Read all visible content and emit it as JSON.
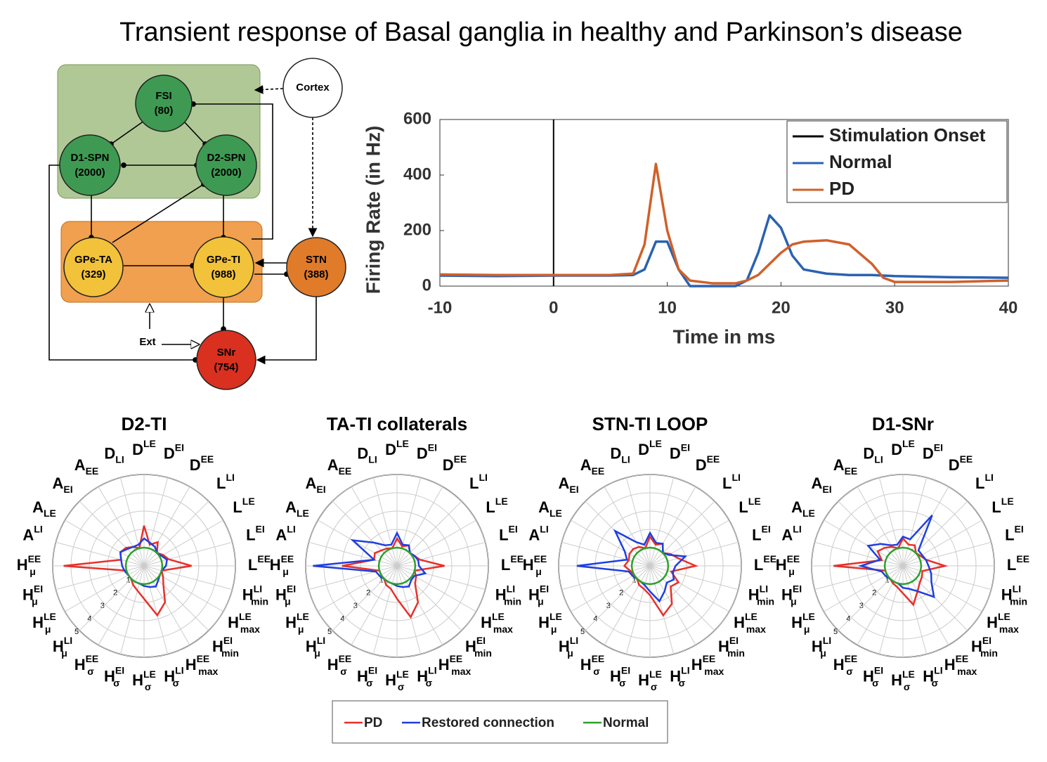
{
  "title": "Transient response of Basal ganglia in healthy and Parkinson’s disease",
  "diagram": {
    "nodes": [
      {
        "label": "FSI",
        "count": "(80)"
      },
      {
        "label": "D1-SPN",
        "count": "(2000)"
      },
      {
        "label": "D2-SPN",
        "count": "(2000)"
      },
      {
        "label": "GPe-TA",
        "count": "(329)"
      },
      {
        "label": "GPe-TI",
        "count": "(988)"
      },
      {
        "label": "STN",
        "count": "(388)"
      },
      {
        "label": "SNr",
        "count": "(754)"
      },
      {
        "label": "Cortex"
      }
    ],
    "input_label": "Ext"
  },
  "chart_data": [
    {
      "type": "line",
      "xlabel": "Time in ms",
      "ylabel": "Firing Rate (in Hz)",
      "x": [
        -10,
        -5,
        0,
        5,
        7,
        8,
        9,
        10,
        11,
        12,
        14,
        16,
        17,
        18,
        19,
        20,
        21,
        22,
        24,
        26,
        28,
        29,
        30,
        35,
        40
      ],
      "series": [
        {
          "name": "Normal",
          "color": "#2a62b0",
          "values": [
            38,
            36,
            38,
            38,
            40,
            60,
            160,
            160,
            60,
            0,
            0,
            0,
            20,
            120,
            255,
            210,
            110,
            60,
            45,
            40,
            40,
            38,
            36,
            32,
            30
          ]
        },
        {
          "name": "PD",
          "color": "#d0602a",
          "values": [
            42,
            40,
            40,
            40,
            45,
            150,
            440,
            200,
            60,
            20,
            10,
            10,
            20,
            40,
            80,
            120,
            150,
            160,
            165,
            150,
            80,
            30,
            15,
            15,
            20
          ]
        }
      ],
      "vlines": [
        {
          "name": "Stimulation Onset",
          "x": 0,
          "color": "#000000"
        }
      ],
      "xlim": [
        -10,
        40
      ],
      "xticks": [
        -10,
        0,
        10,
        20,
        30,
        40
      ],
      "ylim": [
        0,
        600
      ],
      "yticks": [
        0,
        200,
        400,
        600
      ],
      "legend": "upper right"
    },
    {
      "type": "radar",
      "title": "D2-TI",
      "rlim": [
        0,
        5
      ],
      "rticks": [
        1,
        2,
        3,
        4,
        5
      ],
      "series": [
        {
          "values": [
            2.2,
            1.2,
            1.5,
            1.0,
            1.2,
            1.4,
            2.6,
            1.0,
            1.2,
            1.5,
            2.3,
            2.8,
            1.8,
            1.4,
            1.2,
            1.0,
            1.0,
            1.0,
            4.4,
            1.3,
            1.5,
            1.4,
            1.2,
            1.0
          ]
        },
        {
          "values": [
            1.5,
            1.3,
            1.2,
            1.0,
            1.1,
            1.3,
            1.2,
            1.0,
            1.0,
            1.1,
            1.3,
            1.2,
            1.1,
            1.0,
            1.0,
            1.0,
            1.0,
            1.1,
            1.2,
            1.3,
            1.5,
            1.3,
            1.2,
            1.2
          ]
        },
        {
          "values": [
            1,
            1,
            1,
            1,
            1,
            1,
            1,
            1,
            1,
            1,
            1,
            1,
            1,
            1,
            1,
            1,
            1,
            1,
            1,
            1,
            1,
            1,
            1,
            1
          ]
        }
      ]
    },
    {
      "type": "radar",
      "title": "TA-TI collaterals",
      "rlim": [
        0,
        5
      ],
      "rticks": [
        1,
        2,
        3,
        4,
        5
      ],
      "series": [
        {
          "values": [
            1.5,
            1.1,
            1.3,
            1.0,
            1.1,
            1.3,
            2.6,
            1.0,
            1.2,
            1.4,
            2.3,
            2.9,
            1.8,
            1.3,
            1.2,
            1.0,
            1.0,
            1.0,
            3.0,
            1.3,
            1.4,
            1.2,
            1.1,
            1.0
          ]
        },
        {
          "values": [
            1.8,
            1.2,
            1.3,
            1.0,
            1.1,
            1.2,
            1.2,
            1.6,
            1.1,
            1.1,
            1.3,
            1.2,
            1.1,
            1.0,
            1.0,
            1.0,
            1.1,
            1.2,
            4.6,
            1.3,
            2.8,
            1.8,
            1.3,
            1.2
          ]
        },
        {
          "values": [
            1,
            1,
            1,
            1,
            1,
            1,
            1,
            1,
            1,
            1,
            1,
            1,
            1,
            1,
            1,
            1,
            1,
            1,
            1,
            1,
            1,
            1,
            1,
            1
          ]
        }
      ]
    },
    {
      "type": "radar",
      "title": "STN-TI LOOP",
      "rlim": [
        0,
        5
      ],
      "rticks": [
        1,
        2,
        3,
        4,
        5
      ],
      "series": [
        {
          "values": [
            1.6,
            1.2,
            1.4,
            1.0,
            1.3,
            1.6,
            2.5,
            1.2,
            1.8,
            1.6,
            2.4,
            2.8,
            1.6,
            1.3,
            1.2,
            1.0,
            1.0,
            1.1,
            1.4,
            1.2,
            1.3,
            1.3,
            1.2,
            1.0
          ]
        },
        {
          "values": [
            1.8,
            1.3,
            1.4,
            1.0,
            1.2,
            2.0,
            1.4,
            1.3,
            1.5,
            1.3,
            1.6,
            2.0,
            1.4,
            1.1,
            1.0,
            1.0,
            1.1,
            1.2,
            4.0,
            1.3,
            1.6,
            2.7,
            1.5,
            1.2
          ]
        },
        {
          "values": [
            1,
            1,
            1,
            1,
            1,
            1,
            1,
            1,
            1,
            1,
            1,
            1,
            1,
            1,
            1,
            1,
            1,
            1,
            1,
            1,
            1,
            1,
            1,
            1
          ]
        }
      ]
    },
    {
      "type": "radar",
      "title": "D1-SNr",
      "rlim": [
        0,
        5
      ],
      "rticks": [
        1,
        2,
        3,
        4,
        5
      ],
      "series": [
        {
          "values": [
            1.5,
            1.2,
            1.3,
            1.0,
            1.1,
            1.3,
            2.3,
            1.1,
            1.2,
            1.3,
            1.6,
            2.2,
            1.5,
            1.2,
            1.1,
            1.0,
            1.0,
            1.0,
            3.8,
            1.2,
            1.6,
            1.4,
            1.2,
            1.0
          ]
        },
        {
          "values": [
            1.6,
            1.5,
            3.2,
            1.2,
            1.2,
            1.3,
            1.4,
            1.6,
            1.8,
            2.4,
            1.6,
            1.3,
            1.2,
            1.0,
            1.0,
            1.0,
            1.1,
            1.2,
            2.3,
            1.3,
            2.2,
            1.7,
            1.3,
            1.2
          ]
        },
        {
          "values": [
            1,
            1,
            1,
            1,
            1,
            1,
            1,
            1,
            1,
            1,
            1,
            1,
            1,
            1,
            1,
            1,
            1,
            1,
            1,
            1,
            1,
            1,
            1,
            1
          ]
        }
      ]
    }
  ],
  "radar_axes": [
    {
      "base": "D",
      "sup": "LE"
    },
    {
      "base": "D",
      "sup": "EI"
    },
    {
      "base": "D",
      "sup": "EE"
    },
    {
      "base": "L",
      "sup": "LI"
    },
    {
      "base": "L",
      "sup": "LE"
    },
    {
      "base": "L",
      "sup": "EI"
    },
    {
      "base": "L",
      "sup": "EE"
    },
    {
      "base": "H",
      "sup": "LI",
      "sub": "min"
    },
    {
      "base": "H",
      "sup": "LE",
      "sub": "max"
    },
    {
      "base": "H",
      "sup": "EI",
      "sub": "min"
    },
    {
      "base": "H",
      "sup": "EE",
      "sub": "max"
    },
    {
      "base": "H",
      "sup": "LI",
      "sub": "σ"
    },
    {
      "base": "H",
      "sup": "LE",
      "sub": "σ"
    },
    {
      "base": "H",
      "sup": "EI",
      "sub": "σ"
    },
    {
      "base": "H",
      "sup": "EE",
      "sub": "σ"
    },
    {
      "base": "H",
      "sup": "LI",
      "sub": "μ"
    },
    {
      "base": "H",
      "sup": "LE",
      "sub": "μ"
    },
    {
      "base": "H",
      "sup": "EI",
      "sub": "μ"
    },
    {
      "base": "H",
      "sup": "EE",
      "sub": "μ"
    },
    {
      "base": "A",
      "sup": "LI"
    },
    {
      "base": "A",
      "sub": "LE"
    },
    {
      "base": "A",
      "sub": "EI"
    },
    {
      "base": "A",
      "sub": "EE"
    },
    {
      "base": "D",
      "sub": "LI"
    }
  ],
  "radar_legend": [
    {
      "name": "PD",
      "color": "#e8302a"
    },
    {
      "name": "Restored connection",
      "color": "#1f3fe0"
    },
    {
      "name": "Normal",
      "color": "#2ca02c"
    }
  ]
}
